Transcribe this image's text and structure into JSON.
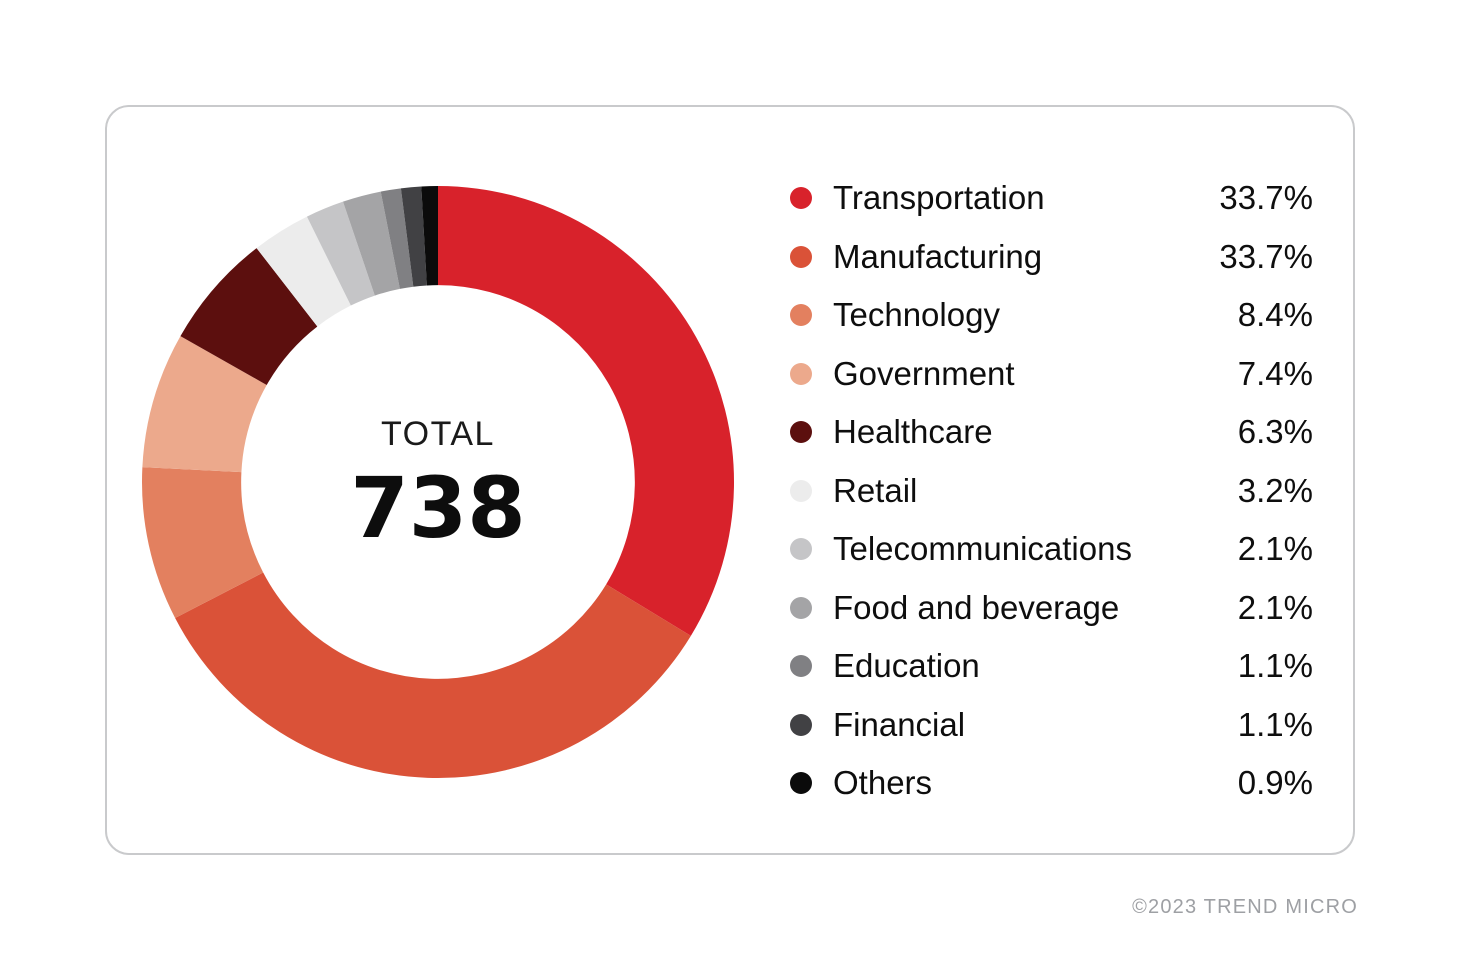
{
  "chart_data": {
    "type": "pie",
    "variant": "donut",
    "categories": [
      "Transportation",
      "Manufacturing",
      "Technology",
      "Government",
      "Healthcare",
      "Retail",
      "Telecommunications",
      "Food and beverage",
      "Education",
      "Financial",
      "Others"
    ],
    "values": [
      33.7,
      33.7,
      8.4,
      7.4,
      6.3,
      3.2,
      2.1,
      2.1,
      1.1,
      1.1,
      0.9
    ],
    "value_labels": [
      "33.7%",
      "33.7%",
      "8.4%",
      "7.4%",
      "6.3%",
      "3.2%",
      "2.1%",
      "2.1%",
      "1.1%",
      "1.1%",
      "0.9%"
    ],
    "colors": [
      "#d8222b",
      "#da5238",
      "#e3805f",
      "#eca98c",
      "#5c0f0e",
      "#ececec",
      "#c5c5c7",
      "#a4a4a6",
      "#808083",
      "#414144",
      "#0b0b0b"
    ],
    "total_label": "TOTAL",
    "total_value": "738",
    "start_angle_deg": 0,
    "direction": "clockwise",
    "legend_position": "right",
    "inner_radius_ratio": 0.665
  },
  "footer": {
    "copyright": "©2023 TREND MICRO"
  }
}
